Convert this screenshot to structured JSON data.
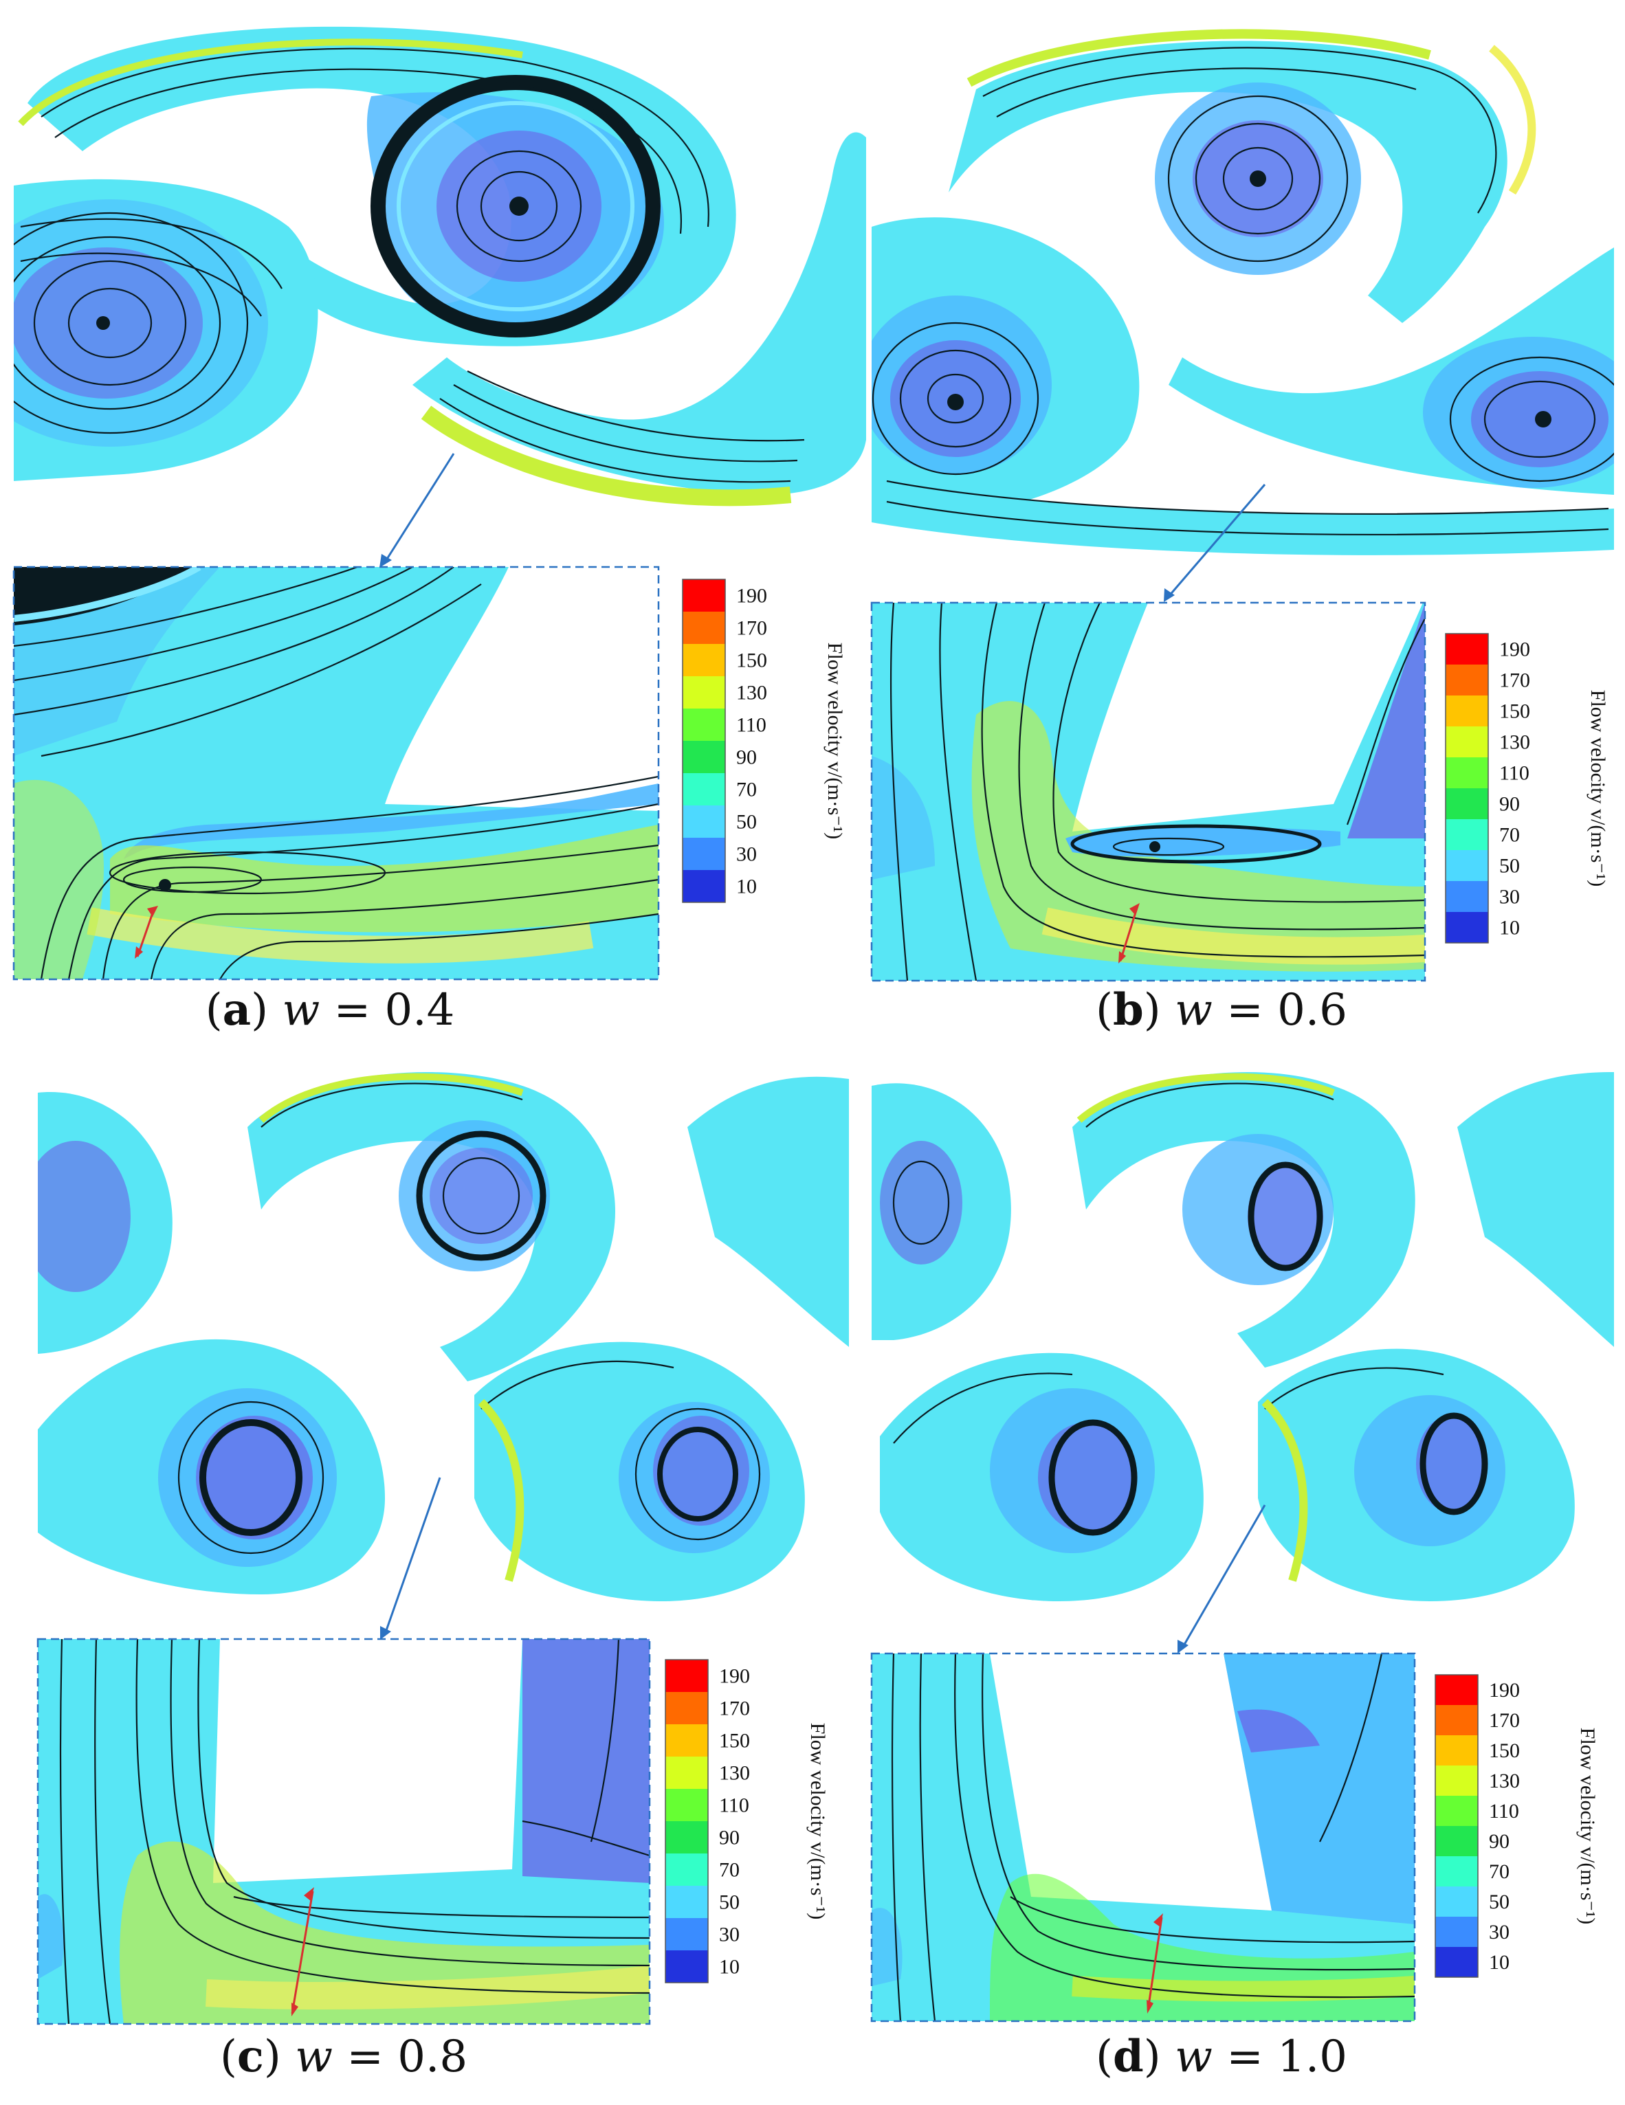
{
  "colormap": {
    "tick_labels": [
      "190",
      "170",
      "150",
      "130",
      "110",
      "90",
      "70",
      "50",
      "30",
      "10"
    ],
    "colors": [
      "#ff0000",
      "#ff6a00",
      "#ffc400",
      "#d6ff1e",
      "#66ff33",
      "#22e650",
      "#33ffc8",
      "#4dd9ff",
      "#3a8cff",
      "#2233dd"
    ],
    "title": "Flow velocity v/(m·s⁻¹)"
  },
  "panels": [
    {
      "letter": "a",
      "variable": "w",
      "value": "0.4"
    },
    {
      "letter": "b",
      "variable": "w",
      "value": "0.6"
    },
    {
      "letter": "c",
      "variable": "w",
      "value": "0.8"
    },
    {
      "letter": "d",
      "variable": "w",
      "value": "1.0"
    }
  ],
  "field_colors": {
    "base": "#58e6f5",
    "low": "#6b60e8",
    "mid": "#4fb8ff",
    "high": "#c8f03a",
    "peak": "#f0f060",
    "streamline": "#0a1a20",
    "arrow": "#d83030",
    "leader": "#2b72c2",
    "frame": "#2b72c2"
  }
}
